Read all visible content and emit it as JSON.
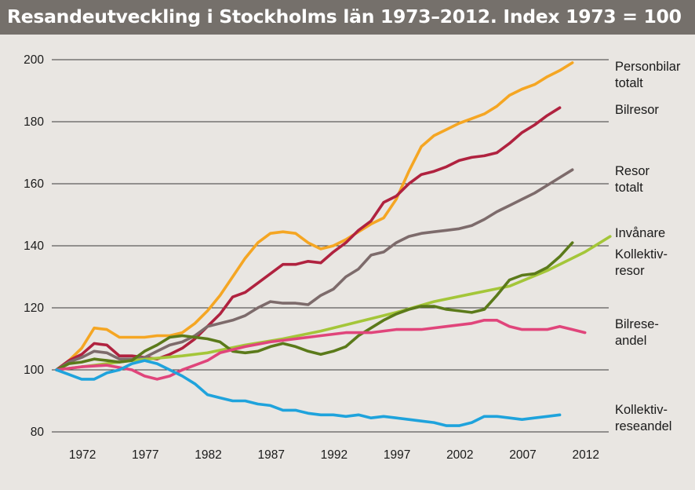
{
  "chart_data": {
    "type": "line",
    "title": "Resandeutveckling i Stockholms län 1973–2012. Index 1973 = 100",
    "xlabel": "",
    "ylabel": "",
    "xlim": [
      1970,
      2013.7
    ],
    "ylim": [
      80,
      200
    ],
    "y_ticks": [
      80,
      100,
      120,
      140,
      160,
      180,
      200
    ],
    "x_ticks": [
      1972,
      1977,
      1982,
      1987,
      1992,
      1997,
      2002,
      2007,
      2012
    ],
    "grid": "horizontal",
    "legend": "direct labels at right end of lines",
    "series": [
      {
        "name": "Personbilar totalt",
        "label_lines": [
          "Personbilar",
          "totalt"
        ],
        "color": "#f5a623",
        "points": [
          [
            1970,
            100
          ],
          [
            1971,
            103
          ],
          [
            1972,
            107
          ],
          [
            1973,
            113.5
          ],
          [
            1974,
            113
          ],
          [
            1975,
            110.5
          ],
          [
            1976,
            110.5
          ],
          [
            1977,
            110.5
          ],
          [
            1978,
            111
          ],
          [
            1979,
            111
          ],
          [
            1980,
            112
          ],
          [
            1981,
            115
          ],
          [
            1982,
            119
          ],
          [
            1983,
            124
          ],
          [
            1984,
            130
          ],
          [
            1985,
            136
          ],
          [
            1986,
            141
          ],
          [
            1987,
            144
          ],
          [
            1988,
            144.5
          ],
          [
            1989,
            144
          ],
          [
            1990,
            141
          ],
          [
            1991,
            139
          ],
          [
            1992,
            140
          ],
          [
            1993,
            142
          ],
          [
            1994,
            144.5
          ],
          [
            1995,
            147
          ],
          [
            1996,
            149
          ],
          [
            1997,
            155
          ],
          [
            1998,
            164
          ],
          [
            1999,
            172
          ],
          [
            2000,
            175.5
          ],
          [
            2001,
            177.5
          ],
          [
            2002,
            179.5
          ],
          [
            2003,
            181
          ],
          [
            2004,
            182.5
          ],
          [
            2005,
            185
          ],
          [
            2006,
            188.5
          ],
          [
            2007,
            190.5
          ],
          [
            2008,
            192
          ],
          [
            2009,
            194.5
          ],
          [
            2010,
            196.5
          ],
          [
            2011,
            199
          ]
        ]
      },
      {
        "name": "Bilresor",
        "label_lines": [
          "Bilresor"
        ],
        "color": "#b0223f",
        "points": [
          [
            1970,
            100
          ],
          [
            1971,
            103
          ],
          [
            1972,
            105
          ],
          [
            1973,
            108.5
          ],
          [
            1974,
            108
          ],
          [
            1975,
            104.5
          ],
          [
            1976,
            104.5
          ],
          [
            1977,
            104
          ],
          [
            1978,
            103.5
          ],
          [
            1979,
            105
          ],
          [
            1980,
            107
          ],
          [
            1981,
            110
          ],
          [
            1982,
            114
          ],
          [
            1983,
            118
          ],
          [
            1984,
            123.5
          ],
          [
            1985,
            125
          ],
          [
            1986,
            128
          ],
          [
            1987,
            131
          ],
          [
            1988,
            134
          ],
          [
            1989,
            134
          ],
          [
            1990,
            135
          ],
          [
            1991,
            134.5
          ],
          [
            1992,
            138
          ],
          [
            1993,
            141
          ],
          [
            1994,
            145
          ],
          [
            1995,
            148
          ],
          [
            1996,
            154
          ],
          [
            1997,
            156
          ],
          [
            1998,
            160
          ],
          [
            1999,
            163
          ],
          [
            2000,
            164
          ],
          [
            2001,
            165.5
          ],
          [
            2002,
            167.5
          ],
          [
            2003,
            168.5
          ],
          [
            2004,
            169
          ],
          [
            2005,
            170
          ],
          [
            2006,
            173
          ],
          [
            2007,
            176.5
          ],
          [
            2008,
            179
          ],
          [
            2009,
            182
          ],
          [
            2010,
            184.5
          ]
        ]
      },
      {
        "name": "Resor totalt",
        "label_lines": [
          "Resor",
          "totalt"
        ],
        "color": "#7d6b6b",
        "points": [
          [
            1970,
            100
          ],
          [
            1971,
            102.5
          ],
          [
            1972,
            104
          ],
          [
            1973,
            106
          ],
          [
            1974,
            105.5
          ],
          [
            1975,
            103.5
          ],
          [
            1976,
            103.5
          ],
          [
            1977,
            104
          ],
          [
            1978,
            106
          ],
          [
            1979,
            108
          ],
          [
            1980,
            109
          ],
          [
            1981,
            111
          ],
          [
            1982,
            114
          ],
          [
            1983,
            115
          ],
          [
            1984,
            116
          ],
          [
            1985,
            117.5
          ],
          [
            1986,
            120
          ],
          [
            1987,
            122
          ],
          [
            1988,
            121.5
          ],
          [
            1989,
            121.5
          ],
          [
            1990,
            121
          ],
          [
            1991,
            124
          ],
          [
            1992,
            126
          ],
          [
            1993,
            130
          ],
          [
            1994,
            132.5
          ],
          [
            1995,
            137
          ],
          [
            1996,
            138
          ],
          [
            1997,
            141
          ],
          [
            1998,
            143
          ],
          [
            1999,
            144
          ],
          [
            2000,
            144.5
          ],
          [
            2001,
            145
          ],
          [
            2002,
            145.5
          ],
          [
            2003,
            146.5
          ],
          [
            2004,
            148.5
          ],
          [
            2005,
            151
          ],
          [
            2006,
            153
          ],
          [
            2007,
            155
          ],
          [
            2008,
            157
          ],
          [
            2009,
            159.5
          ],
          [
            2010,
            162
          ],
          [
            2011,
            164.5
          ]
        ]
      },
      {
        "name": "Invånare",
        "label_lines": [
          "Invånare"
        ],
        "color": "#a4c639",
        "points": [
          [
            1970,
            100
          ],
          [
            1973,
            101.5
          ],
          [
            1976,
            103
          ],
          [
            1980,
            104.5
          ],
          [
            1982,
            105.5
          ],
          [
            1985,
            108
          ],
          [
            1988,
            110
          ],
          [
            1991,
            112.5
          ],
          [
            1994,
            115.5
          ],
          [
            1997,
            118.5
          ],
          [
            2000,
            122
          ],
          [
            2003,
            124.5
          ],
          [
            2006,
            127
          ],
          [
            2009,
            132
          ],
          [
            2012,
            138
          ],
          [
            2014,
            143
          ]
        ]
      },
      {
        "name": "Kollektivresor",
        "label_lines": [
          "Kollektiv-",
          "resor"
        ],
        "color": "#5b7a1a",
        "points": [
          [
            1970,
            100
          ],
          [
            1971,
            102
          ],
          [
            1972,
            102.5
          ],
          [
            1973,
            103.5
          ],
          [
            1974,
            103
          ],
          [
            1975,
            102.5
          ],
          [
            1976,
            103
          ],
          [
            1977,
            106
          ],
          [
            1978,
            108
          ],
          [
            1979,
            110.5
          ],
          [
            1980,
            111
          ],
          [
            1981,
            110.5
          ],
          [
            1982,
            110
          ],
          [
            1983,
            109
          ],
          [
            1984,
            106
          ],
          [
            1985,
            105.5
          ],
          [
            1986,
            106
          ],
          [
            1987,
            107.5
          ],
          [
            1988,
            108.5
          ],
          [
            1989,
            107.5
          ],
          [
            1990,
            106
          ],
          [
            1991,
            105
          ],
          [
            1992,
            106
          ],
          [
            1993,
            107.5
          ],
          [
            1994,
            111
          ],
          [
            1995,
            113.5
          ],
          [
            1996,
            116
          ],
          [
            1997,
            118
          ],
          [
            1998,
            119.5
          ],
          [
            1999,
            120.5
          ],
          [
            2000,
            120.5
          ],
          [
            2001,
            119.5
          ],
          [
            2002,
            119
          ],
          [
            2003,
            118.5
          ],
          [
            2004,
            119.5
          ],
          [
            2005,
            124
          ],
          [
            2006,
            129
          ],
          [
            2007,
            130.5
          ],
          [
            2008,
            131
          ],
          [
            2009,
            133
          ],
          [
            2010,
            136.5
          ],
          [
            2011,
            141
          ]
        ]
      },
      {
        "name": "Bilreseandel",
        "label_lines": [
          "Bilrese-",
          "andel"
        ],
        "color": "#e0457b",
        "points": [
          [
            1970,
            100
          ],
          [
            1972,
            101
          ],
          [
            1974,
            101.5
          ],
          [
            1976,
            100
          ],
          [
            1977,
            98
          ],
          [
            1978,
            97
          ],
          [
            1979,
            98
          ],
          [
            1980,
            100
          ],
          [
            1982,
            103
          ],
          [
            1983,
            105.5
          ],
          [
            1985,
            107.5
          ],
          [
            1987,
            109
          ],
          [
            1989,
            110
          ],
          [
            1991,
            111
          ],
          [
            1993,
            112
          ],
          [
            1995,
            112
          ],
          [
            1997,
            113
          ],
          [
            1999,
            113
          ],
          [
            2001,
            114
          ],
          [
            2003,
            115
          ],
          [
            2004,
            116
          ],
          [
            2005,
            116
          ],
          [
            2006,
            114
          ],
          [
            2007,
            113
          ],
          [
            2009,
            113
          ],
          [
            2010,
            114
          ],
          [
            2011,
            113
          ],
          [
            2012,
            112
          ]
        ]
      },
      {
        "name": "Kollektivreseandel",
        "label_lines": [
          "Kollektiv-",
          "reseandel"
        ],
        "color": "#1fa3dc",
        "points": [
          [
            1970,
            100
          ],
          [
            1971,
            98.5
          ],
          [
            1972,
            97
          ],
          [
            1973,
            97
          ],
          [
            1974,
            99
          ],
          [
            1975,
            100
          ],
          [
            1976,
            102
          ],
          [
            1977,
            103
          ],
          [
            1978,
            102
          ],
          [
            1979,
            100
          ],
          [
            1980,
            98
          ],
          [
            1981,
            95.5
          ],
          [
            1982,
            92
          ],
          [
            1983,
            91
          ],
          [
            1984,
            90
          ],
          [
            1985,
            90
          ],
          [
            1986,
            89
          ],
          [
            1987,
            88.5
          ],
          [
            1988,
            87
          ],
          [
            1989,
            87
          ],
          [
            1990,
            86
          ],
          [
            1991,
            85.5
          ],
          [
            1992,
            85.5
          ],
          [
            1993,
            85
          ],
          [
            1994,
            85.5
          ],
          [
            1995,
            84.5
          ],
          [
            1996,
            85
          ],
          [
            1997,
            84.5
          ],
          [
            1998,
            84
          ],
          [
            1999,
            83.5
          ],
          [
            2000,
            83
          ],
          [
            2001,
            82
          ],
          [
            2002,
            82
          ],
          [
            2003,
            83
          ],
          [
            2004,
            85
          ],
          [
            2005,
            85
          ],
          [
            2006,
            84.5
          ],
          [
            2007,
            84
          ],
          [
            2008,
            84.5
          ],
          [
            2009,
            85
          ],
          [
            2010,
            85.5
          ]
        ]
      }
    ]
  }
}
